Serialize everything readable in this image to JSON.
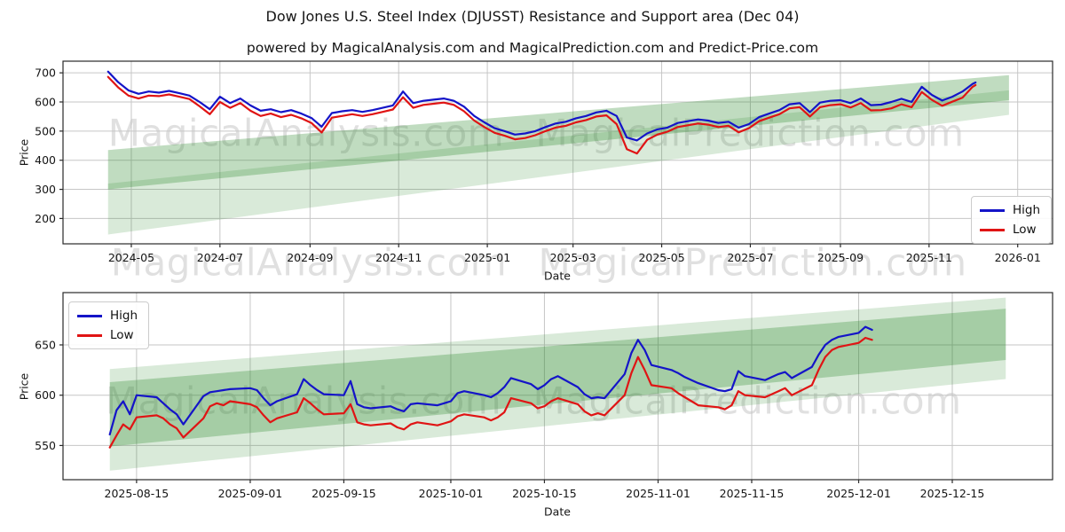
{
  "title": "Dow Jones U.S. Steel Index (DJUSST) Resistance and Support area (Dec 04)",
  "subtitle": "powered by MagicalAnalysis.com and MagicalPrediction.com and Predict-Price.com",
  "watermark_row_texts": [
    "MagicalAnalysis.com",
    "MagicalPrediction.com"
  ],
  "legend": {
    "high_label": "High",
    "low_label": "Low"
  },
  "colors": {
    "high_line": "#1414c8",
    "low_line": "#e01414",
    "band_green": "#2e8b2e",
    "grid": "#c6c6c6",
    "axis": "#2a2a2a",
    "watermark": "rgba(60,60,60,0.16)"
  },
  "chart_data": [
    {
      "type": "line",
      "name": "main-price-chart",
      "xlabel": "Date",
      "ylabel": "Price",
      "grid": true,
      "legend_position": "lower right",
      "x_domain": [
        "2024-03-15",
        "2026-01-25"
      ],
      "y_domain": [
        113,
        740
      ],
      "x_ticks": [
        "2024-05",
        "2024-07",
        "2024-09",
        "2024-11",
        "2025-01",
        "2025-03",
        "2025-05",
        "2025-07",
        "2025-09",
        "2025-11",
        "2026-01"
      ],
      "y_ticks": [
        200,
        300,
        400,
        500,
        600,
        700
      ],
      "dates": [
        "2024-04-15",
        "2024-04-22",
        "2024-04-29",
        "2024-05-06",
        "2024-05-13",
        "2024-05-20",
        "2024-05-27",
        "2024-06-03",
        "2024-06-10",
        "2024-06-17",
        "2024-06-24",
        "2024-07-01",
        "2024-07-08",
        "2024-07-15",
        "2024-07-22",
        "2024-07-29",
        "2024-08-05",
        "2024-08-12",
        "2024-08-19",
        "2024-08-26",
        "2024-09-02",
        "2024-09-09",
        "2024-09-16",
        "2024-09-23",
        "2024-09-30",
        "2024-10-07",
        "2024-10-14",
        "2024-10-21",
        "2024-10-28",
        "2024-11-04",
        "2024-11-11",
        "2024-11-18",
        "2024-11-25",
        "2024-12-02",
        "2024-12-09",
        "2024-12-16",
        "2024-12-23",
        "2024-12-30",
        "2025-01-06",
        "2025-01-13",
        "2025-01-20",
        "2025-01-27",
        "2025-02-03",
        "2025-02-10",
        "2025-02-17",
        "2025-02-24",
        "2025-03-03",
        "2025-03-10",
        "2025-03-17",
        "2025-03-24",
        "2025-03-31",
        "2025-04-07",
        "2025-04-14",
        "2025-04-21",
        "2025-04-28",
        "2025-05-05",
        "2025-05-12",
        "2025-05-19",
        "2025-05-26",
        "2025-06-02",
        "2025-06-09",
        "2025-06-16",
        "2025-06-23",
        "2025-06-30",
        "2025-07-07",
        "2025-07-14",
        "2025-07-21",
        "2025-07-28",
        "2025-08-04",
        "2025-08-11",
        "2025-08-18",
        "2025-08-25",
        "2025-09-01",
        "2025-09-08",
        "2025-09-15",
        "2025-09-22",
        "2025-09-29",
        "2025-10-06",
        "2025-10-13",
        "2025-10-20",
        "2025-10-27",
        "2025-11-03",
        "2025-11-10",
        "2025-11-17",
        "2025-11-24",
        "2025-12-01",
        "2025-12-03"
      ],
      "series": [
        {
          "name": "High",
          "color_key": "high_line",
          "values": [
            704,
            668,
            640,
            628,
            636,
            632,
            638,
            630,
            622,
            600,
            575,
            618,
            596,
            612,
            588,
            570,
            575,
            565,
            572,
            560,
            545,
            515,
            562,
            568,
            572,
            566,
            572,
            580,
            588,
            636,
            596,
            604,
            608,
            612,
            604,
            584,
            552,
            530,
            510,
            500,
            488,
            492,
            500,
            514,
            526,
            532,
            544,
            552,
            564,
            570,
            552,
            478,
            468,
            492,
            506,
            512,
            528,
            534,
            540,
            536,
            528,
            532,
            512,
            524,
            548,
            560,
            572,
            592,
            596,
            565,
            598,
            604,
            606,
            596,
            612,
            589,
            591,
            600,
            611,
            600,
            652,
            624,
            605,
            618,
            636,
            662,
            667
          ]
        },
        {
          "name": "Low",
          "color_key": "low_line",
          "values": [
            686,
            650,
            622,
            612,
            622,
            620,
            626,
            618,
            610,
            585,
            558,
            600,
            580,
            596,
            570,
            552,
            560,
            548,
            556,
            544,
            528,
            495,
            546,
            552,
            558,
            552,
            558,
            566,
            574,
            616,
            580,
            590,
            594,
            598,
            590,
            568,
            536,
            514,
            494,
            484,
            472,
            476,
            486,
            500,
            512,
            518,
            530,
            538,
            550,
            554,
            524,
            438,
            423,
            470,
            488,
            498,
            514,
            520,
            526,
            522,
            514,
            518,
            496,
            510,
            534,
            546,
            558,
            578,
            582,
            550,
            582,
            589,
            592,
            581,
            596,
            571,
            572,
            578,
            592,
            582,
            634,
            607,
            587,
            601,
            615,
            652,
            658
          ]
        }
      ],
      "bands": [
        {
          "name": "resistance-band",
          "dates": [
            "2024-04-15",
            "2025-12-26"
          ],
          "top": [
            435,
            692
          ],
          "bottom": [
            300,
            606
          ],
          "opacity": 0.3
        },
        {
          "name": "support-band",
          "dates": [
            "2024-04-15",
            "2025-12-26"
          ],
          "top": [
            320,
            640
          ],
          "bottom": [
            145,
            556
          ],
          "opacity": 0.18
        }
      ]
    },
    {
      "type": "line",
      "name": "zoomed-price-chart",
      "xlabel": "Date",
      "ylabel": "Price",
      "grid": true,
      "legend_position": "upper left",
      "x_domain": [
        "2025-08-04",
        "2025-12-30"
      ],
      "y_domain": [
        516,
        702
      ],
      "x_ticks": [
        "2025-08-15",
        "2025-09-01",
        "2025-09-15",
        "2025-10-01",
        "2025-10-15",
        "2025-11-01",
        "2025-11-15",
        "2025-12-01",
        "2025-12-15"
      ],
      "y_ticks": [
        550,
        600,
        650
      ],
      "dates": [
        "2025-08-11",
        "2025-08-12",
        "2025-08-13",
        "2025-08-14",
        "2025-08-15",
        "2025-08-18",
        "2025-08-19",
        "2025-08-20",
        "2025-08-21",
        "2025-08-22",
        "2025-08-25",
        "2025-08-26",
        "2025-08-27",
        "2025-08-28",
        "2025-08-29",
        "2025-09-01",
        "2025-09-02",
        "2025-09-03",
        "2025-09-04",
        "2025-09-05",
        "2025-09-08",
        "2025-09-09",
        "2025-09-10",
        "2025-09-11",
        "2025-09-12",
        "2025-09-15",
        "2025-09-16",
        "2025-09-17",
        "2025-09-18",
        "2025-09-19",
        "2025-09-22",
        "2025-09-23",
        "2025-09-24",
        "2025-09-25",
        "2025-09-26",
        "2025-09-29",
        "2025-09-30",
        "2025-10-01",
        "2025-10-02",
        "2025-10-03",
        "2025-10-06",
        "2025-10-07",
        "2025-10-08",
        "2025-10-09",
        "2025-10-10",
        "2025-10-13",
        "2025-10-14",
        "2025-10-15",
        "2025-10-16",
        "2025-10-17",
        "2025-10-20",
        "2025-10-21",
        "2025-10-22",
        "2025-10-23",
        "2025-10-24",
        "2025-10-27",
        "2025-10-28",
        "2025-10-29",
        "2025-10-30",
        "2025-10-31",
        "2025-11-03",
        "2025-11-04",
        "2025-11-05",
        "2025-11-06",
        "2025-11-07",
        "2025-11-10",
        "2025-11-11",
        "2025-11-12",
        "2025-11-13",
        "2025-11-14",
        "2025-11-17",
        "2025-11-18",
        "2025-11-19",
        "2025-11-20",
        "2025-11-21",
        "2025-11-24",
        "2025-11-25",
        "2025-11-26",
        "2025-11-27",
        "2025-11-28",
        "2025-12-01",
        "2025-12-02",
        "2025-12-03"
      ],
      "series": [
        {
          "name": "High",
          "color_key": "high_line",
          "values": [
            561,
            585,
            594,
            581,
            600,
            598,
            592,
            586,
            581,
            571,
            599,
            603,
            604,
            605,
            606,
            607,
            605,
            597,
            590,
            594,
            601,
            616,
            610,
            605,
            601,
            600,
            614,
            591,
            588,
            587,
            589,
            586,
            584,
            591,
            592,
            590,
            592,
            594,
            602,
            604,
            600,
            598,
            602,
            608,
            617,
            611,
            606,
            610,
            616,
            619,
            608,
            601,
            597,
            598,
            597,
            621,
            642,
            655,
            645,
            630,
            625,
            622,
            618,
            615,
            612,
            605,
            604,
            606,
            624,
            619,
            615,
            618,
            621,
            623,
            617,
            628,
            640,
            650,
            655,
            658,
            662,
            668,
            665
          ]
        },
        {
          "name": "Low",
          "color_key": "low_line",
          "values": [
            548,
            560,
            571,
            566,
            578,
            580,
            577,
            571,
            567,
            558,
            577,
            589,
            592,
            590,
            594,
            591,
            588,
            580,
            573,
            577,
            583,
            597,
            592,
            586,
            581,
            582,
            591,
            573,
            571,
            570,
            572,
            568,
            566,
            571,
            573,
            570,
            572,
            574,
            579,
            581,
            578,
            575,
            578,
            583,
            597,
            592,
            587,
            589,
            594,
            597,
            591,
            584,
            580,
            582,
            580,
            600,
            622,
            638,
            625,
            610,
            607,
            602,
            598,
            594,
            590,
            588,
            586,
            590,
            604,
            600,
            598,
            601,
            604,
            607,
            600,
            610,
            625,
            638,
            645,
            648,
            652,
            657,
            655
          ]
        }
      ],
      "bands": [
        {
          "name": "resistance-band",
          "dates": [
            "2025-08-11",
            "2025-12-23"
          ],
          "top": [
            613,
            686
          ],
          "bottom": [
            549,
            635
          ],
          "opacity": 0.3
        },
        {
          "name": "support-band",
          "dates": [
            "2025-08-11",
            "2025-12-23"
          ],
          "top": [
            626,
            697
          ],
          "bottom": [
            525,
            616
          ],
          "opacity": 0.18
        }
      ]
    }
  ]
}
